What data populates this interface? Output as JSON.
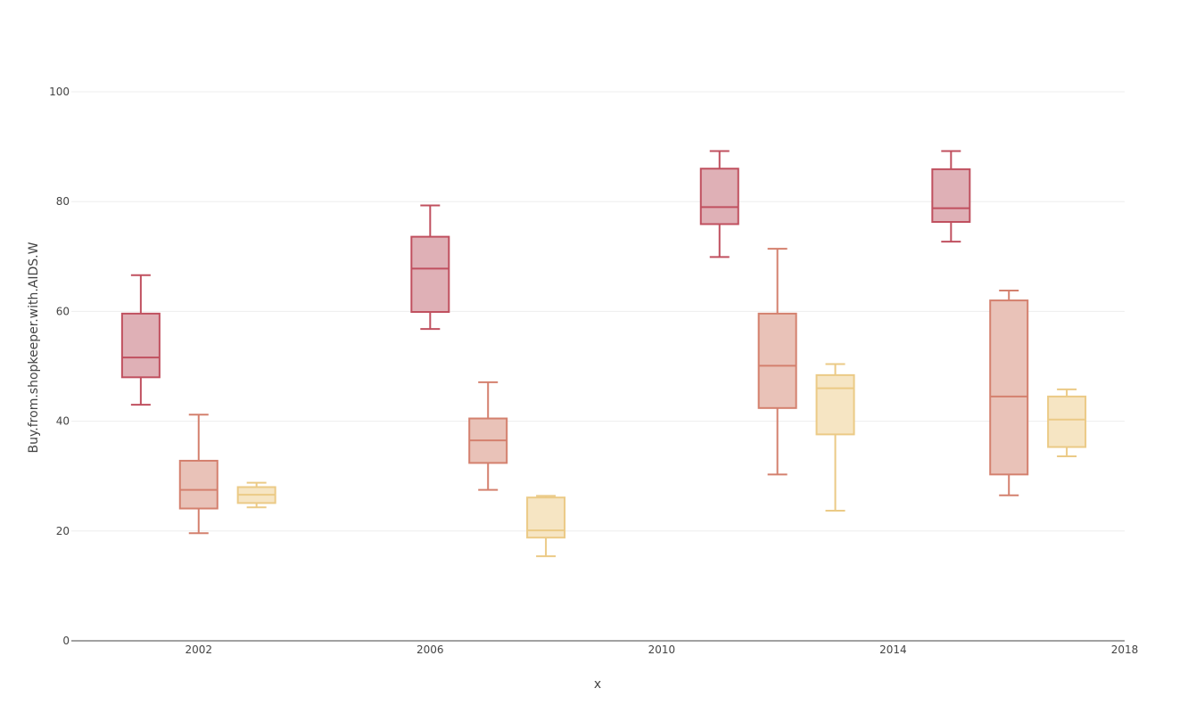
{
  "chart_data": {
    "type": "box",
    "xlabel": "x",
    "ylabel": "Buy.from.shopkeeper.with.AIDS.W",
    "xlim": [
      1999.8,
      2018
    ],
    "ylim": [
      0,
      100
    ],
    "x_ticks": [
      "2002",
      "2006",
      "2010",
      "2014",
      "2018"
    ],
    "x_tick_values": [
      2002,
      2006,
      2010,
      2014,
      2018
    ],
    "y_ticks": [
      "0",
      "20",
      "40",
      "60",
      "80",
      "100"
    ],
    "y_tick_values": [
      0,
      20,
      40,
      60,
      80,
      100
    ],
    "grid": true,
    "series": [
      {
        "color": "#c0505f",
        "fill": "#dfb0b6",
        "boxes": [
          {
            "x": 2001,
            "min": 43.0,
            "q1": 48.0,
            "median": 51.6,
            "q3": 59.6,
            "max": 66.6
          },
          {
            "x": 2006,
            "min": 56.8,
            "q1": 59.9,
            "median": 67.8,
            "q3": 73.6,
            "max": 79.3
          },
          {
            "x": 2011,
            "min": 69.9,
            "q1": 75.9,
            "median": 79.0,
            "q3": 86.0,
            "max": 89.2
          },
          {
            "x": 2015,
            "min": 72.7,
            "q1": 76.3,
            "median": 78.8,
            "q3": 85.9,
            "max": 89.2
          }
        ]
      },
      {
        "color": "#d4806e",
        "fill": "#e9c2b8",
        "boxes": [
          {
            "x": 2002,
            "min": 19.6,
            "q1": 24.1,
            "median": 27.5,
            "q3": 32.8,
            "max": 41.2
          },
          {
            "x": 2007,
            "min": 27.5,
            "q1": 32.4,
            "median": 36.5,
            "q3": 40.5,
            "max": 47.1
          },
          {
            "x": 2012,
            "min": 30.3,
            "q1": 42.4,
            "median": 50.1,
            "q3": 59.6,
            "max": 71.4
          },
          {
            "x": 2016,
            "min": 26.5,
            "q1": 30.3,
            "median": 44.5,
            "q3": 62.0,
            "max": 63.8
          }
        ]
      },
      {
        "color": "#ebca86",
        "fill": "#f6e5c3",
        "boxes": [
          {
            "x": 2003,
            "min": 24.3,
            "q1": 25.1,
            "median": 26.6,
            "q3": 28.0,
            "max": 28.8
          },
          {
            "x": 2008,
            "min": 15.4,
            "q1": 18.8,
            "median": 20.1,
            "q3": 26.1,
            "max": 26.4
          },
          {
            "x": 2013,
            "min": 23.7,
            "q1": 37.6,
            "median": 46.0,
            "q3": 48.4,
            "max": 50.4
          },
          {
            "x": 2017,
            "min": 33.6,
            "q1": 35.3,
            "median": 40.3,
            "q3": 44.5,
            "max": 45.8
          }
        ]
      }
    ]
  }
}
